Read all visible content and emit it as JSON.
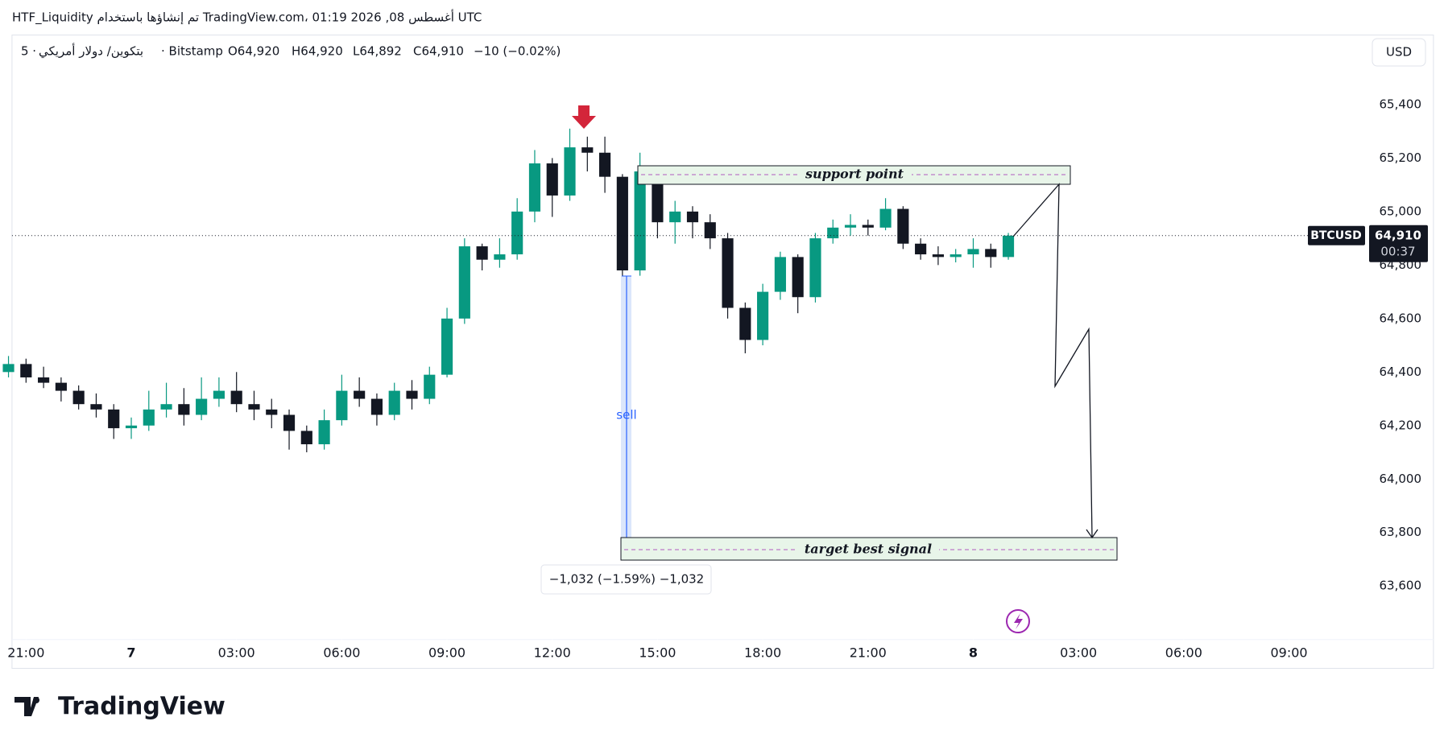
{
  "chart_data": {
    "type": "candlestick",
    "header": "HTF_Liquidity تم إنشاؤها باستخدام TradingView.com، 01:19 2026 ,08 أغسطس UTC",
    "interval": "5 ·",
    "symbol_name": "بتكوين/ دولار أمريكي",
    "exchange": "· Bitstamp",
    "ohlc_labels": [
      "O64,920",
      "H64,920",
      "L64,892",
      "C64,910",
      "−10 (−0.02%)"
    ],
    "currency": "USD",
    "series": [
      {
        "name": "BTCUSD",
        "up_color": "#089981",
        "down_color": "#131722",
        "x": [
          -0.5,
          0,
          0.5,
          1,
          1.5,
          2,
          2.5,
          3,
          3.5,
          4,
          4.5,
          5,
          5.5,
          6,
          6.5,
          7,
          7.5,
          8,
          8.5,
          9,
          9.5,
          10,
          10.5,
          11,
          11.5,
          12,
          12.5,
          13,
          13.5,
          14,
          14.5,
          15,
          15.5,
          16,
          16.5,
          17,
          17.5,
          18,
          18.5,
          19,
          19.5,
          20,
          20.5,
          21,
          21.5,
          22,
          22.5,
          23,
          23.5,
          24,
          24.5,
          25,
          25.5,
          26,
          26.5,
          27,
          27.5,
          28
        ],
        "open": [
          64400,
          64430,
          64380,
          64360,
          64330,
          64280,
          64260,
          64190,
          64200,
          64260,
          64280,
          64240,
          64300,
          64330,
          64280,
          64260,
          64240,
          64180,
          64130,
          64220,
          64330,
          64300,
          64240,
          64330,
          64300,
          64390,
          64600,
          64870,
          64820,
          64840,
          65000,
          65180,
          65060,
          65240,
          65220,
          65130,
          64780,
          65150,
          64960,
          65000,
          64960,
          64900,
          64640,
          64520,
          64700,
          64830,
          64680,
          64900,
          64940,
          64950,
          64940,
          65010,
          64880,
          64840,
          64830,
          64840,
          64860,
          64830
        ],
        "high": [
          64460,
          64450,
          64420,
          64380,
          64350,
          64320,
          64280,
          64230,
          64330,
          64360,
          64340,
          64380,
          64380,
          64400,
          64330,
          64300,
          64260,
          64200,
          64260,
          64390,
          64380,
          64320,
          64360,
          64370,
          64420,
          64640,
          64900,
          64880,
          64900,
          65050,
          65230,
          65200,
          65310,
          65280,
          65280,
          65140,
          65220,
          65170,
          65040,
          65020,
          64990,
          64920,
          64660,
          64730,
          64850,
          64840,
          64920,
          64970,
          64990,
          64970,
          65050,
          65020,
          64900,
          64870,
          64860,
          64900,
          64880,
          64920
        ],
        "low": [
          64380,
          64360,
          64340,
          64290,
          64260,
          64230,
          64150,
          64150,
          64180,
          64230,
          64200,
          64220,
          64270,
          64250,
          64220,
          64190,
          64110,
          64100,
          64110,
          64200,
          64270,
          64200,
          64220,
          64260,
          64280,
          64380,
          64580,
          64780,
          64790,
          64820,
          64960,
          64980,
          65040,
          65150,
          65070,
          64750,
          64760,
          64900,
          64880,
          64900,
          64860,
          64600,
          64470,
          64500,
          64670,
          64620,
          64660,
          64880,
          64910,
          64910,
          64930,
          64860,
          64820,
          64800,
          64810,
          64790,
          64790,
          64820
        ],
        "close": [
          64430,
          64380,
          64360,
          64330,
          64280,
          64260,
          64190,
          64200,
          64260,
          64280,
          64240,
          64300,
          64330,
          64280,
          64260,
          64240,
          64180,
          64130,
          64220,
          64330,
          64300,
          64240,
          64330,
          64300,
          64390,
          64600,
          64870,
          64820,
          64840,
          65000,
          65180,
          65060,
          65240,
          65220,
          65130,
          64780,
          65150,
          64960,
          65000,
          64960,
          64900,
          64640,
          64520,
          64700,
          64830,
          64680,
          64900,
          64940,
          64950,
          64940,
          65010,
          64880,
          64840,
          64830,
          64840,
          64860,
          64830,
          64910
        ]
      }
    ],
    "last_price": 64910,
    "last_price_label": "64,910",
    "countdown": "00:37",
    "xlim": [
      -0.4,
      38.1
    ],
    "xticks": [
      {
        "value": 0,
        "label": "21:00"
      },
      {
        "value": 3,
        "label": "7"
      },
      {
        "value": 6,
        "label": "03:00"
      },
      {
        "value": 9,
        "label": "06:00"
      },
      {
        "value": 12,
        "label": "09:00"
      },
      {
        "value": 15,
        "label": "12:00"
      },
      {
        "value": 18,
        "label": "15:00"
      },
      {
        "value": 21,
        "label": "18:00"
      },
      {
        "value": 24,
        "label": "21:00"
      },
      {
        "value": 27,
        "label": "8"
      },
      {
        "value": 30,
        "label": "03:00"
      },
      {
        "value": 33,
        "label": "06:00"
      },
      {
        "value": 36,
        "label": "09:00"
      }
    ],
    "ylim": [
      63400,
      65660
    ],
    "yticks": [
      {
        "value": 63600,
        "label": "63,600"
      },
      {
        "value": 63800,
        "label": "63,800"
      },
      {
        "value": 64000,
        "label": "64,000"
      },
      {
        "value": 64200,
        "label": "64,200"
      },
      {
        "value": 64400,
        "label": "64,400"
      },
      {
        "value": 64600,
        "label": "64,600"
      },
      {
        "value": 64800,
        "label": "64,800"
      },
      {
        "value": 65000,
        "label": "65,000"
      },
      {
        "value": 65200,
        "label": "65,200"
      },
      {
        "value": 65400,
        "label": "65,400"
      }
    ],
    "annotations": {
      "support": "support  point",
      "target": "target  best  signal",
      "sell": "sell",
      "measure": "−1,032 (−1.59%) −1,032"
    },
    "watermark": "TradingView"
  }
}
